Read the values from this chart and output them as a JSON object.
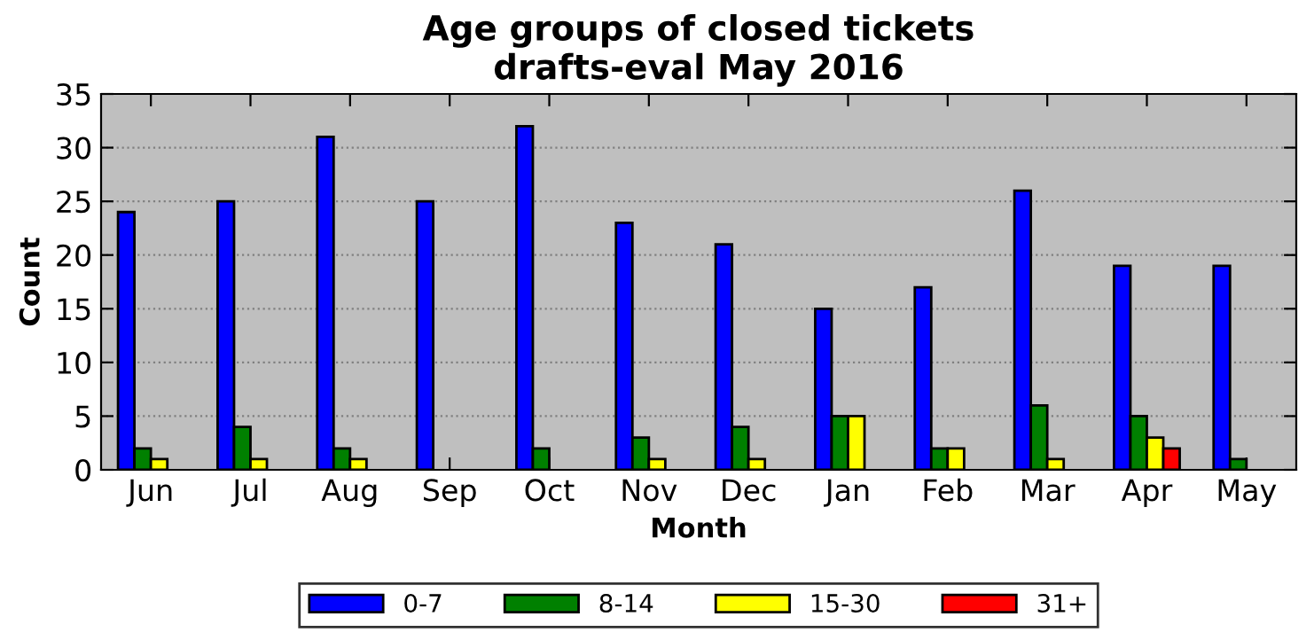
{
  "chart_data": {
    "type": "bar",
    "title": "Age groups of closed tickets\ndrafts-eval May 2016",
    "xlabel": "Month",
    "ylabel": "Count",
    "categories": [
      "Jun",
      "Jul",
      "Aug",
      "Sep",
      "Oct",
      "Nov",
      "Dec",
      "Jan",
      "Feb",
      "Mar",
      "Apr",
      "May"
    ],
    "series": [
      {
        "name": "0-7",
        "color": "#0000ff",
        "values": [
          24,
          25,
          31,
          25,
          32,
          23,
          21,
          15,
          17,
          26,
          19,
          19
        ]
      },
      {
        "name": "8-14",
        "color": "#008000",
        "values": [
          2,
          4,
          2,
          0,
          2,
          3,
          4,
          5,
          2,
          6,
          5,
          1
        ]
      },
      {
        "name": "15-30",
        "color": "#ffff00",
        "values": [
          1,
          1,
          1,
          0,
          0,
          1,
          1,
          5,
          2,
          1,
          3,
          0
        ]
      },
      {
        "name": "31+",
        "color": "#ff0000",
        "values": [
          0,
          0,
          0,
          0,
          0,
          0,
          0,
          0,
          0,
          0,
          2,
          0
        ]
      }
    ],
    "ylim": [
      0,
      35
    ],
    "yticks": [
      0,
      5,
      10,
      15,
      20,
      25,
      30,
      35
    ],
    "grid": "y",
    "legend": "bottom"
  }
}
